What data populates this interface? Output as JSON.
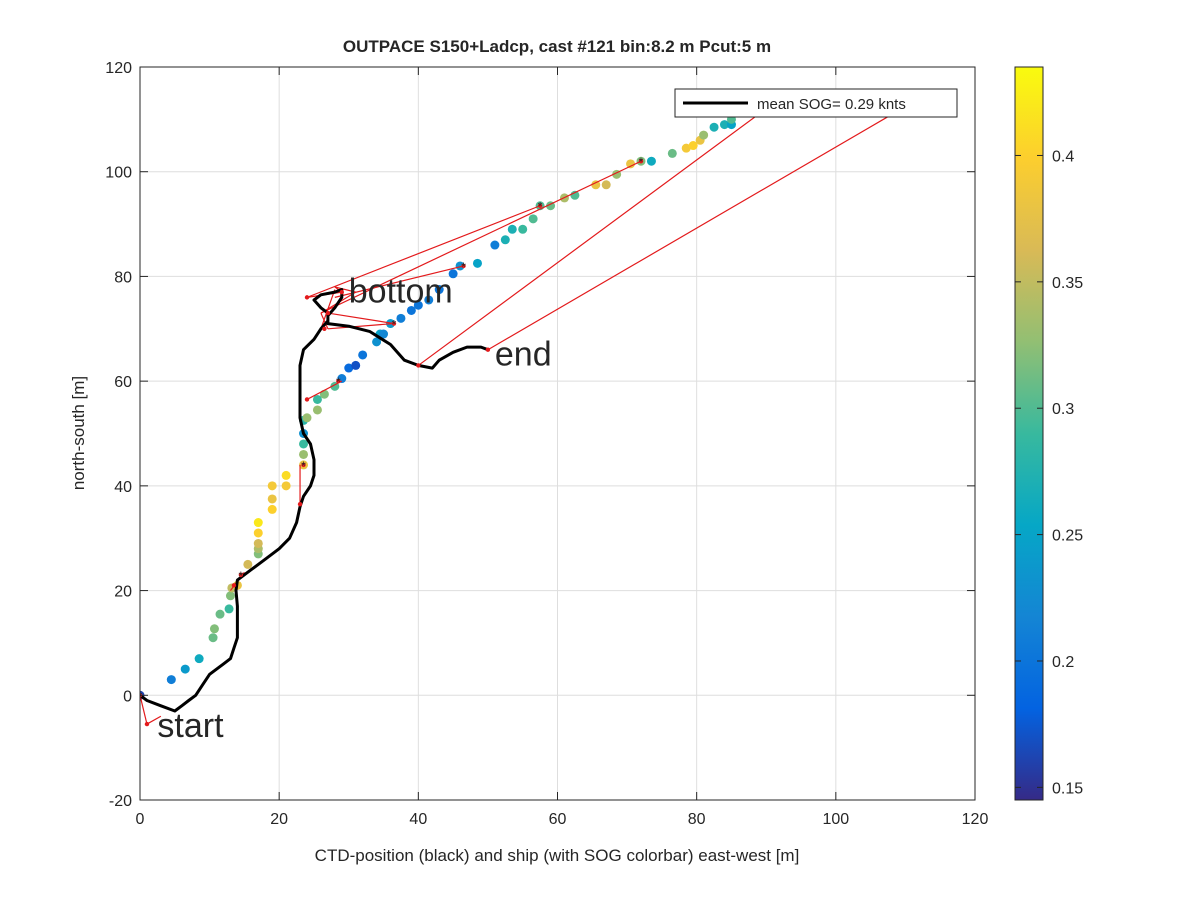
{
  "chart_data": {
    "type": "scatter",
    "title": "OUTPACE S150+Ladcp, cast #121 bin:8.2 m  Pcut:5 m",
    "xlabel": "CTD-position (black) and ship (with SOG colorbar) east-west [m]",
    "ylabel": "north-south [m]",
    "xlim": [
      0,
      120
    ],
    "ylim": [
      -20,
      120
    ],
    "xticks": [
      "0",
      "20",
      "40",
      "60",
      "80",
      "100",
      "120"
    ],
    "yticks": [
      "-20",
      "0",
      "20",
      "40",
      "60",
      "80",
      "100",
      "120"
    ],
    "grid": true,
    "legend": {
      "position": "top-right",
      "entries": [
        "mean SOG=  0.29 knts"
      ]
    },
    "colorbar": {
      "range": [
        0.145,
        0.435
      ],
      "ticks": [
        "0.15",
        "0.2",
        "0.25",
        "0.3",
        "0.35",
        "0.4"
      ],
      "colormap": "parula",
      "colors": [
        "#352a87",
        "#0363e1",
        "#1485d4",
        "#06a7c6",
        "#38b99e",
        "#92bf73",
        "#d9ba56",
        "#fcce2e",
        "#f9fb0e"
      ]
    },
    "annotations": [
      {
        "text": "start",
        "x": 2.5,
        "y": -8
      },
      {
        "text": "bottom",
        "x": 30,
        "y": 75
      },
      {
        "text": "end",
        "x": 51,
        "y": 63
      }
    ],
    "ctd_track": [
      [
        0,
        0
      ],
      [
        1,
        -1
      ],
      [
        3,
        -2
      ],
      [
        5,
        -3
      ],
      [
        6,
        -2
      ],
      [
        7,
        -1
      ],
      [
        8,
        0
      ],
      [
        9,
        2
      ],
      [
        10,
        4
      ],
      [
        12,
        6
      ],
      [
        13,
        7
      ],
      [
        13.5,
        9
      ],
      [
        14,
        11
      ],
      [
        14,
        13
      ],
      [
        14,
        15
      ],
      [
        14,
        17
      ],
      [
        13.8,
        20
      ],
      [
        14,
        22
      ],
      [
        16,
        24
      ],
      [
        18,
        26
      ],
      [
        20,
        28
      ],
      [
        21.5,
        30
      ],
      [
        22.5,
        33
      ],
      [
        23,
        36
      ],
      [
        23.5,
        38
      ],
      [
        24.5,
        40
      ],
      [
        25,
        42
      ],
      [
        25,
        45
      ],
      [
        24.5,
        48
      ],
      [
        23.5,
        50
      ],
      [
        23,
        53
      ],
      [
        23,
        57
      ],
      [
        23,
        60
      ],
      [
        23,
        63
      ],
      [
        23.5,
        66
      ],
      [
        25,
        68
      ],
      [
        26,
        70
      ],
      [
        27,
        71.5
      ],
      [
        27,
        73
      ],
      [
        26,
        74
      ],
      [
        25,
        75.5
      ],
      [
        26,
        76.5
      ],
      [
        28,
        77
      ],
      [
        29,
        77.5
      ],
      [
        29,
        76
      ],
      [
        28,
        74
      ],
      [
        27,
        72.5
      ],
      [
        27,
        71
      ],
      [
        30,
        70.5
      ],
      [
        33,
        69.5
      ],
      [
        36,
        67
      ],
      [
        38,
        64
      ],
      [
        40,
        63
      ],
      [
        42,
        62.5
      ],
      [
        43,
        64
      ],
      [
        45,
        65.5
      ],
      [
        47,
        66.5
      ],
      [
        49,
        66.5
      ],
      [
        50,
        66
      ]
    ],
    "ship_track": [
      [
        0,
        0
      ],
      [
        1,
        -5.5
      ],
      [
        13,
        21
      ],
      [
        14,
        22
      ],
      [
        23,
        36
      ],
      [
        23,
        44
      ],
      [
        24,
        56.5
      ],
      [
        36,
        69
      ],
      [
        44,
        78
      ],
      [
        47,
        82
      ],
      [
        57.5,
        93.5
      ],
      [
        72,
        102
      ],
      [
        90,
        114
      ]
    ],
    "ship_sog_points": [
      [
        0,
        0,
        0.16
      ],
      [
        4.5,
        3,
        0.21
      ],
      [
        6.5,
        5,
        0.24
      ],
      [
        8.5,
        7,
        0.26
      ],
      [
        10.5,
        11,
        0.31
      ],
      [
        10.7,
        12.7,
        0.32
      ],
      [
        11.5,
        15.5,
        0.31
      ],
      [
        12.8,
        16.5,
        0.29
      ],
      [
        13,
        19,
        0.32
      ],
      [
        13.2,
        20.5,
        0.35
      ],
      [
        14,
        21,
        0.38
      ],
      [
        15.5,
        25,
        0.36
      ],
      [
        17,
        27,
        0.32
      ],
      [
        17,
        28,
        0.34
      ],
      [
        17,
        29,
        0.36
      ],
      [
        17,
        31,
        0.4
      ],
      [
        17,
        33,
        0.42
      ],
      [
        19,
        35.5,
        0.4
      ],
      [
        19,
        37.5,
        0.38
      ],
      [
        19,
        40,
        0.39
      ],
      [
        21,
        40,
        0.39
      ],
      [
        21,
        42,
        0.41
      ],
      [
        23.5,
        44,
        0.38
      ],
      [
        23.5,
        46,
        0.33
      ],
      [
        23.5,
        48,
        0.29
      ],
      [
        23.5,
        50,
        0.23
      ],
      [
        23.5,
        52.5,
        0.28
      ],
      [
        24,
        53,
        0.33
      ],
      [
        25.5,
        54.5,
        0.33
      ],
      [
        25.5,
        56.5,
        0.29
      ],
      [
        26.5,
        57.5,
        0.32
      ],
      [
        28,
        59,
        0.3
      ],
      [
        29,
        60.5,
        0.21
      ],
      [
        30,
        62.5,
        0.19
      ],
      [
        31,
        63,
        0.17
      ],
      [
        32,
        65,
        0.2
      ],
      [
        34,
        67.5,
        0.23
      ],
      [
        34.5,
        69,
        0.25
      ],
      [
        35,
        69,
        0.22
      ],
      [
        36,
        71,
        0.24
      ],
      [
        37.5,
        72,
        0.21
      ],
      [
        39,
        73.5,
        0.2
      ],
      [
        40,
        74.5,
        0.2
      ],
      [
        41.5,
        75.5,
        0.21
      ],
      [
        43,
        77.5,
        0.2
      ],
      [
        45,
        80.5,
        0.2
      ],
      [
        46,
        82,
        0.23
      ],
      [
        48.5,
        82.5,
        0.25
      ],
      [
        51,
        86,
        0.21
      ],
      [
        52.5,
        87,
        0.27
      ],
      [
        53.5,
        89,
        0.27
      ],
      [
        55,
        89,
        0.29
      ],
      [
        56.5,
        91,
        0.3
      ],
      [
        57.5,
        93.5,
        0.3
      ],
      [
        59,
        93.5,
        0.31
      ],
      [
        61,
        95,
        0.34
      ],
      [
        62.5,
        95.5,
        0.3
      ],
      [
        65.5,
        97.5,
        0.38
      ],
      [
        67,
        97.5,
        0.36
      ],
      [
        68.5,
        99.5,
        0.33
      ],
      [
        70.5,
        101.5,
        0.38
      ],
      [
        72,
        102,
        0.32
      ],
      [
        73.5,
        102,
        0.26
      ],
      [
        76.5,
        103.5,
        0.31
      ],
      [
        78.5,
        104.5,
        0.39
      ],
      [
        79.5,
        105,
        0.4
      ],
      [
        80.5,
        106,
        0.38
      ],
      [
        81,
        107,
        0.33
      ],
      [
        82.5,
        108.5,
        0.27
      ],
      [
        84,
        109,
        0.27
      ],
      [
        85,
        109,
        0.25
      ],
      [
        85,
        110,
        0.3
      ]
    ],
    "red_segments": [
      [
        [
          46.5,
          82
        ],
        [
          28,
          76
        ]
      ],
      [
        [
          57.5,
          93.5
        ],
        [
          24,
          76
        ]
      ],
      [
        [
          72,
          102
        ],
        [
          26,
          73
        ]
      ],
      [
        [
          36.5,
          71
        ],
        [
          27,
          73
        ]
      ],
      [
        [
          26,
          70
        ],
        [
          28,
          77.5
        ]
      ],
      [
        [
          24,
          76
        ],
        [
          29,
          77
        ]
      ],
      [
        [
          29,
          77
        ],
        [
          28,
          78
        ]
      ],
      [
        [
          28,
          78
        ],
        [
          31,
          77
        ]
      ],
      [
        [
          31,
          77
        ],
        [
          26,
          73
        ]
      ],
      [
        [
          26,
          73
        ],
        [
          27,
          70
        ]
      ],
      [
        [
          27,
          70
        ],
        [
          36.5,
          71
        ]
      ],
      [
        [
          40,
          63
        ],
        [
          93,
          115
        ]
      ],
      [
        [
          50,
          66
        ],
        [
          112,
          114
        ]
      ],
      [
        [
          24,
          56.5
        ],
        [
          29,
          60
        ]
      ],
      [
        [
          23,
          44
        ],
        [
          23,
          36
        ]
      ],
      [
        [
          1,
          -5.5
        ],
        [
          0,
          0
        ]
      ],
      [
        [
          1,
          -5.5
        ],
        [
          3,
          -4
        ]
      ],
      [
        [
          13,
          20
        ],
        [
          15,
          23.5
        ]
      ]
    ],
    "red_markers": [
      [
        0,
        0
      ],
      [
        1,
        -5.5
      ],
      [
        13.5,
        21
      ],
      [
        14.5,
        23
      ],
      [
        23,
        36.5
      ],
      [
        23.5,
        44
      ],
      [
        24,
        56.5
      ],
      [
        28.5,
        60
      ],
      [
        26.5,
        70
      ],
      [
        27,
        73
      ],
      [
        24,
        76
      ],
      [
        29,
        77
      ],
      [
        36.5,
        71
      ],
      [
        40,
        63
      ],
      [
        46.5,
        82
      ],
      [
        50,
        66
      ],
      [
        57.5,
        93.5
      ],
      [
        72,
        102
      ]
    ],
    "black_star_markers": [
      [
        0,
        0
      ],
      [
        14.5,
        23
      ],
      [
        23.5,
        44
      ],
      [
        28.5,
        60
      ],
      [
        36.5,
        71
      ],
      [
        46.5,
        82
      ],
      [
        57.5,
        93.5
      ],
      [
        72,
        102
      ]
    ]
  }
}
